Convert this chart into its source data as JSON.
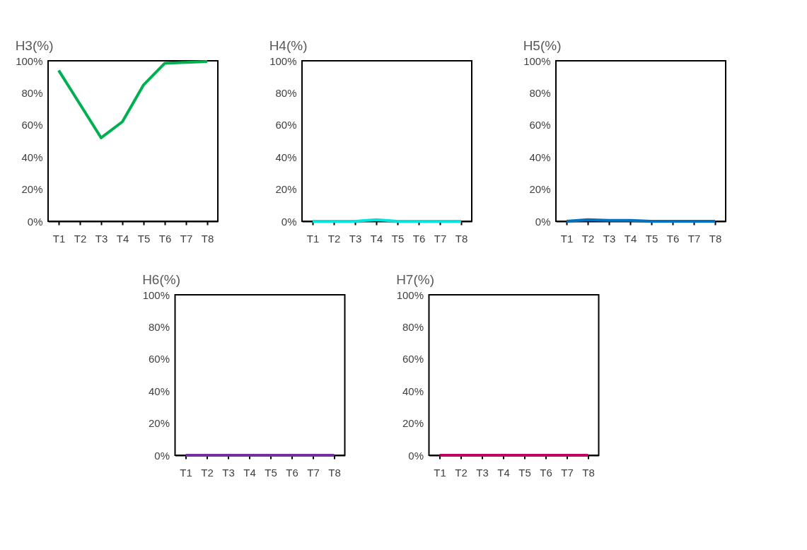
{
  "chart_data": [
    {
      "type": "line",
      "title": "H3(%)",
      "categories": [
        "T1",
        "T2",
        "T3",
        "T4",
        "T5",
        "T6",
        "T7",
        "T8"
      ],
      "series": [
        {
          "color": "#00b050",
          "values": [
            94,
            73,
            52,
            62,
            85,
            98.5,
            99,
            99.6
          ]
        }
      ],
      "ylim": [
        0,
        100
      ],
      "yticks": [
        {
          "value": 0,
          "label": "0%"
        },
        {
          "value": 20,
          "label": "20%"
        },
        {
          "value": 40,
          "label": "40%"
        },
        {
          "value": 60,
          "label": "60%"
        },
        {
          "value": 80,
          "label": "80%"
        },
        {
          "value": 100,
          "label": "100%"
        }
      ],
      "grid": false,
      "legend": false,
      "marker": "none",
      "line_style": "solid"
    },
    {
      "type": "line",
      "title": "H4(%)",
      "categories": [
        "T1",
        "T2",
        "T3",
        "T4",
        "T5",
        "T6",
        "T7",
        "T8"
      ],
      "series": [
        {
          "color": "#00e5e0",
          "values": [
            0,
            0,
            0,
            1,
            0,
            0,
            0,
            0
          ]
        }
      ],
      "ylim": [
        0,
        100
      ],
      "yticks": [
        {
          "value": 0,
          "label": "0%"
        },
        {
          "value": 20,
          "label": "20%"
        },
        {
          "value": 40,
          "label": "40%"
        },
        {
          "value": 60,
          "label": "60%"
        },
        {
          "value": 80,
          "label": "80%"
        },
        {
          "value": 100,
          "label": "100%"
        }
      ],
      "grid": false,
      "legend": false,
      "marker": "none",
      "line_style": "solid"
    },
    {
      "type": "line",
      "title": "H5(%)",
      "categories": [
        "T1",
        "T2",
        "T3",
        "T4",
        "T5",
        "T6",
        "T7",
        "T8"
      ],
      "series": [
        {
          "color": "#0070c0",
          "values": [
            0,
            1,
            0.5,
            0.5,
            0,
            0,
            0,
            0
          ]
        }
      ],
      "ylim": [
        0,
        100
      ],
      "yticks": [
        {
          "value": 0,
          "label": "0%"
        },
        {
          "value": 20,
          "label": "20%"
        },
        {
          "value": 40,
          "label": "40%"
        },
        {
          "value": 60,
          "label": "60%"
        },
        {
          "value": 80,
          "label": "80%"
        },
        {
          "value": 100,
          "label": "100%"
        }
      ],
      "grid": false,
      "legend": false,
      "marker": "none",
      "line_style": "solid"
    },
    {
      "type": "line",
      "title": "H6(%)",
      "categories": [
        "T1",
        "T2",
        "T3",
        "T4",
        "T5",
        "T6",
        "T7",
        "T8"
      ],
      "series": [
        {
          "color": "#7030a0",
          "values": [
            0,
            0,
            0,
            0,
            0,
            0,
            0,
            0
          ]
        }
      ],
      "ylim": [
        0,
        100
      ],
      "yticks": [
        {
          "value": 0,
          "label": "0%"
        },
        {
          "value": 20,
          "label": "20%"
        },
        {
          "value": 40,
          "label": "40%"
        },
        {
          "value": 60,
          "label": "60%"
        },
        {
          "value": 80,
          "label": "80%"
        },
        {
          "value": 100,
          "label": "100%"
        }
      ],
      "grid": false,
      "legend": false,
      "marker": "none",
      "line_style": "solid"
    },
    {
      "type": "line",
      "title": "H7(%)",
      "categories": [
        "T1",
        "T2",
        "T3",
        "T4",
        "T5",
        "T6",
        "T7",
        "T8"
      ],
      "series": [
        {
          "color": "#c00060",
          "values": [
            0,
            0,
            0,
            0,
            0,
            0,
            0,
            0
          ]
        }
      ],
      "ylim": [
        0,
        100
      ],
      "yticks": [
        {
          "value": 0,
          "label": "0%"
        },
        {
          "value": 20,
          "label": "20%"
        },
        {
          "value": 40,
          "label": "40%"
        },
        {
          "value": 60,
          "label": "60%"
        },
        {
          "value": 80,
          "label": "80%"
        },
        {
          "value": 100,
          "label": "100%"
        }
      ],
      "grid": false,
      "legend": false,
      "marker": "none",
      "line_style": "solid"
    }
  ]
}
